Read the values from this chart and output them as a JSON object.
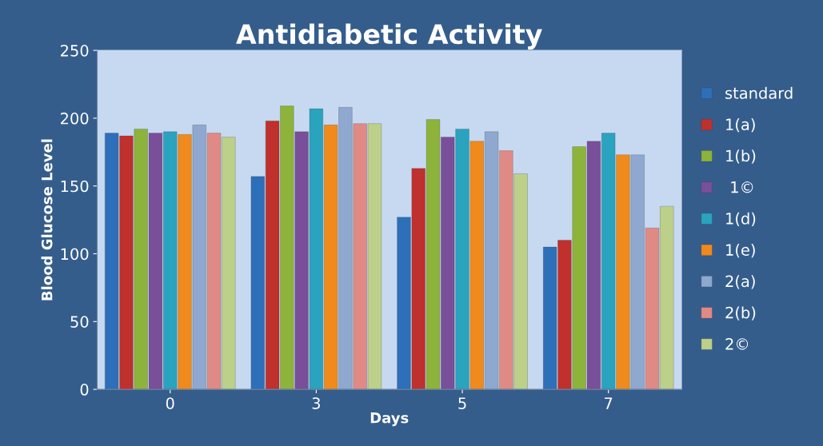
{
  "chart_data": {
    "type": "bar",
    "title": "Antidiabetic Activity",
    "xlabel": "Days",
    "ylabel": "Blood Glucose Level",
    "categories": [
      "0",
      "3",
      "5",
      "7"
    ],
    "series": [
      {
        "name": "standard",
        "color": "#2e6fba",
        "values": [
          189,
          157,
          127,
          105
        ]
      },
      {
        "name": "1(a)",
        "color": "#c0302c",
        "values": [
          187,
          198,
          163,
          110
        ]
      },
      {
        "name": "1(b)",
        "color": "#8db33a",
        "values": [
          192,
          209,
          199,
          179
        ]
      },
      {
        "name": " 1©",
        "color": "#7a4f9a",
        "values": [
          189,
          190,
          186,
          183
        ]
      },
      {
        "name": "1(d)",
        "color": "#2aa3be",
        "values": [
          190,
          207,
          192,
          189
        ]
      },
      {
        "name": "1(e)",
        "color": "#f08a1c",
        "values": [
          188,
          195,
          183,
          173
        ]
      },
      {
        "name": "2(a)",
        "color": "#8fa8d0",
        "values": [
          195,
          208,
          190,
          173
        ]
      },
      {
        "name": "2(b)",
        "color": "#e08a86",
        "values": [
          189,
          196,
          176,
          119
        ]
      },
      {
        "name": "2©",
        "color": "#bcd08a",
        "values": [
          186,
          196,
          159,
          135
        ]
      }
    ],
    "ylim": [
      0,
      250
    ],
    "yticks": [
      0,
      50,
      100,
      150,
      200,
      250
    ],
    "grid": false,
    "legend": "right"
  }
}
